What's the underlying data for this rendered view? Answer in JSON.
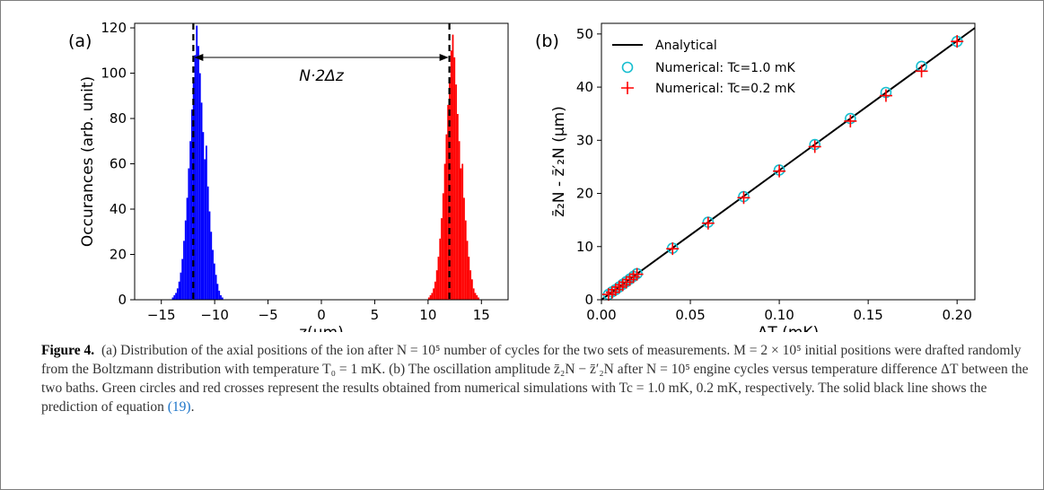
{
  "figure": {
    "label": "Figure 4.",
    "caption": "(a) Distribution of the axial positions of the ion after N = 10⁵ number of cycles for the two sets of measurements. M = 2 × 10⁵ initial positions were drafted randomly from the Boltzmann distribution with temperature T₀ = 1 mK. (b) The oscillation amplitude z̄₂N − z̄′₂N after N = 10⁵ engine cycles versus temperature difference ΔT between the two baths. Green circles and red crosses represent the results obtained from numerical simulations with Tc = 1.0 mK, 0.2 mK, respectively. The solid black line shows the prediction of equation",
    "caption_ref": "(19)",
    "caption_end": "."
  },
  "chart_data": [
    {
      "panel": "(a)",
      "type": "bar",
      "xlabel": "z(μm)",
      "ylabel": "Occurances (arb. unit)",
      "xlim": [
        -17.5,
        17.5
      ],
      "ylim": [
        0,
        122
      ],
      "xticks": [
        -15,
        -10,
        -5,
        0,
        5,
        10,
        15
      ],
      "yticks": [
        0,
        20,
        40,
        60,
        80,
        100,
        120
      ],
      "annotation": "N·2Δz",
      "dashed_lines_x": [
        -12,
        12
      ],
      "bin_width": 0.15,
      "series": [
        {
          "color": "#0000ff",
          "x_start": -14.0,
          "values": [
            1,
            2,
            3,
            5,
            8,
            12,
            18,
            26,
            35,
            45,
            58,
            70,
            84,
            96,
            108,
            121,
            112,
            100,
            87,
            74,
            62,
            68,
            50,
            39,
            30,
            22,
            16,
            11,
            7,
            4,
            2,
            1
          ]
        },
        {
          "color": "#ff0000",
          "x_start": 10.0,
          "values": [
            1,
            2,
            3,
            5,
            8,
            13,
            19,
            27,
            36,
            47,
            60,
            73,
            86,
            98,
            110,
            117,
            107,
            95,
            82,
            70,
            58,
            60,
            45,
            35,
            26,
            19,
            13,
            9,
            5,
            3,
            2,
            1
          ]
        }
      ]
    },
    {
      "panel": "(b)",
      "type": "scatter",
      "xlabel": "ΔT (mK)",
      "ylabel": "z̄₂N - z̄′₂N (μm)",
      "xlim": [
        0,
        0.21
      ],
      "ylim": [
        0,
        52
      ],
      "xticks": [
        "0.00",
        "0.05",
        "0.10",
        "0.15",
        "0.20"
      ],
      "yticks": [
        0,
        10,
        20,
        30,
        40,
        50
      ],
      "legend_position": "top-left",
      "line": {
        "name": "Analytical",
        "slope": 243.5,
        "color": "#000000"
      },
      "series": [
        {
          "name": "Numerical: Tc=1.0 mK",
          "marker": "circle",
          "color": "#17becf",
          "x": [
            0.004,
            0.006,
            0.008,
            0.01,
            0.012,
            0.014,
            0.016,
            0.018,
            0.02,
            0.04,
            0.06,
            0.08,
            0.1,
            0.12,
            0.14,
            0.16,
            0.18,
            0.2
          ],
          "y": [
            1.0,
            1.5,
            1.9,
            2.4,
            2.9,
            3.4,
            3.9,
            4.4,
            4.9,
            9.7,
            14.6,
            19.4,
            24.4,
            29.2,
            34.1,
            39.0,
            43.9,
            48.6
          ]
        },
        {
          "name": "Numerical: Tc=0.2 mK",
          "marker": "plus",
          "color": "#ff0000",
          "x": [
            0.004,
            0.006,
            0.008,
            0.01,
            0.012,
            0.014,
            0.016,
            0.018,
            0.02,
            0.04,
            0.06,
            0.08,
            0.1,
            0.12,
            0.14,
            0.16,
            0.18,
            0.2
          ],
          "y": [
            1.0,
            1.4,
            1.9,
            2.4,
            2.8,
            3.3,
            3.8,
            4.3,
            4.8,
            9.6,
            14.4,
            19.2,
            24.2,
            28.8,
            33.6,
            38.4,
            43.0,
            48.6
          ]
        }
      ]
    }
  ]
}
